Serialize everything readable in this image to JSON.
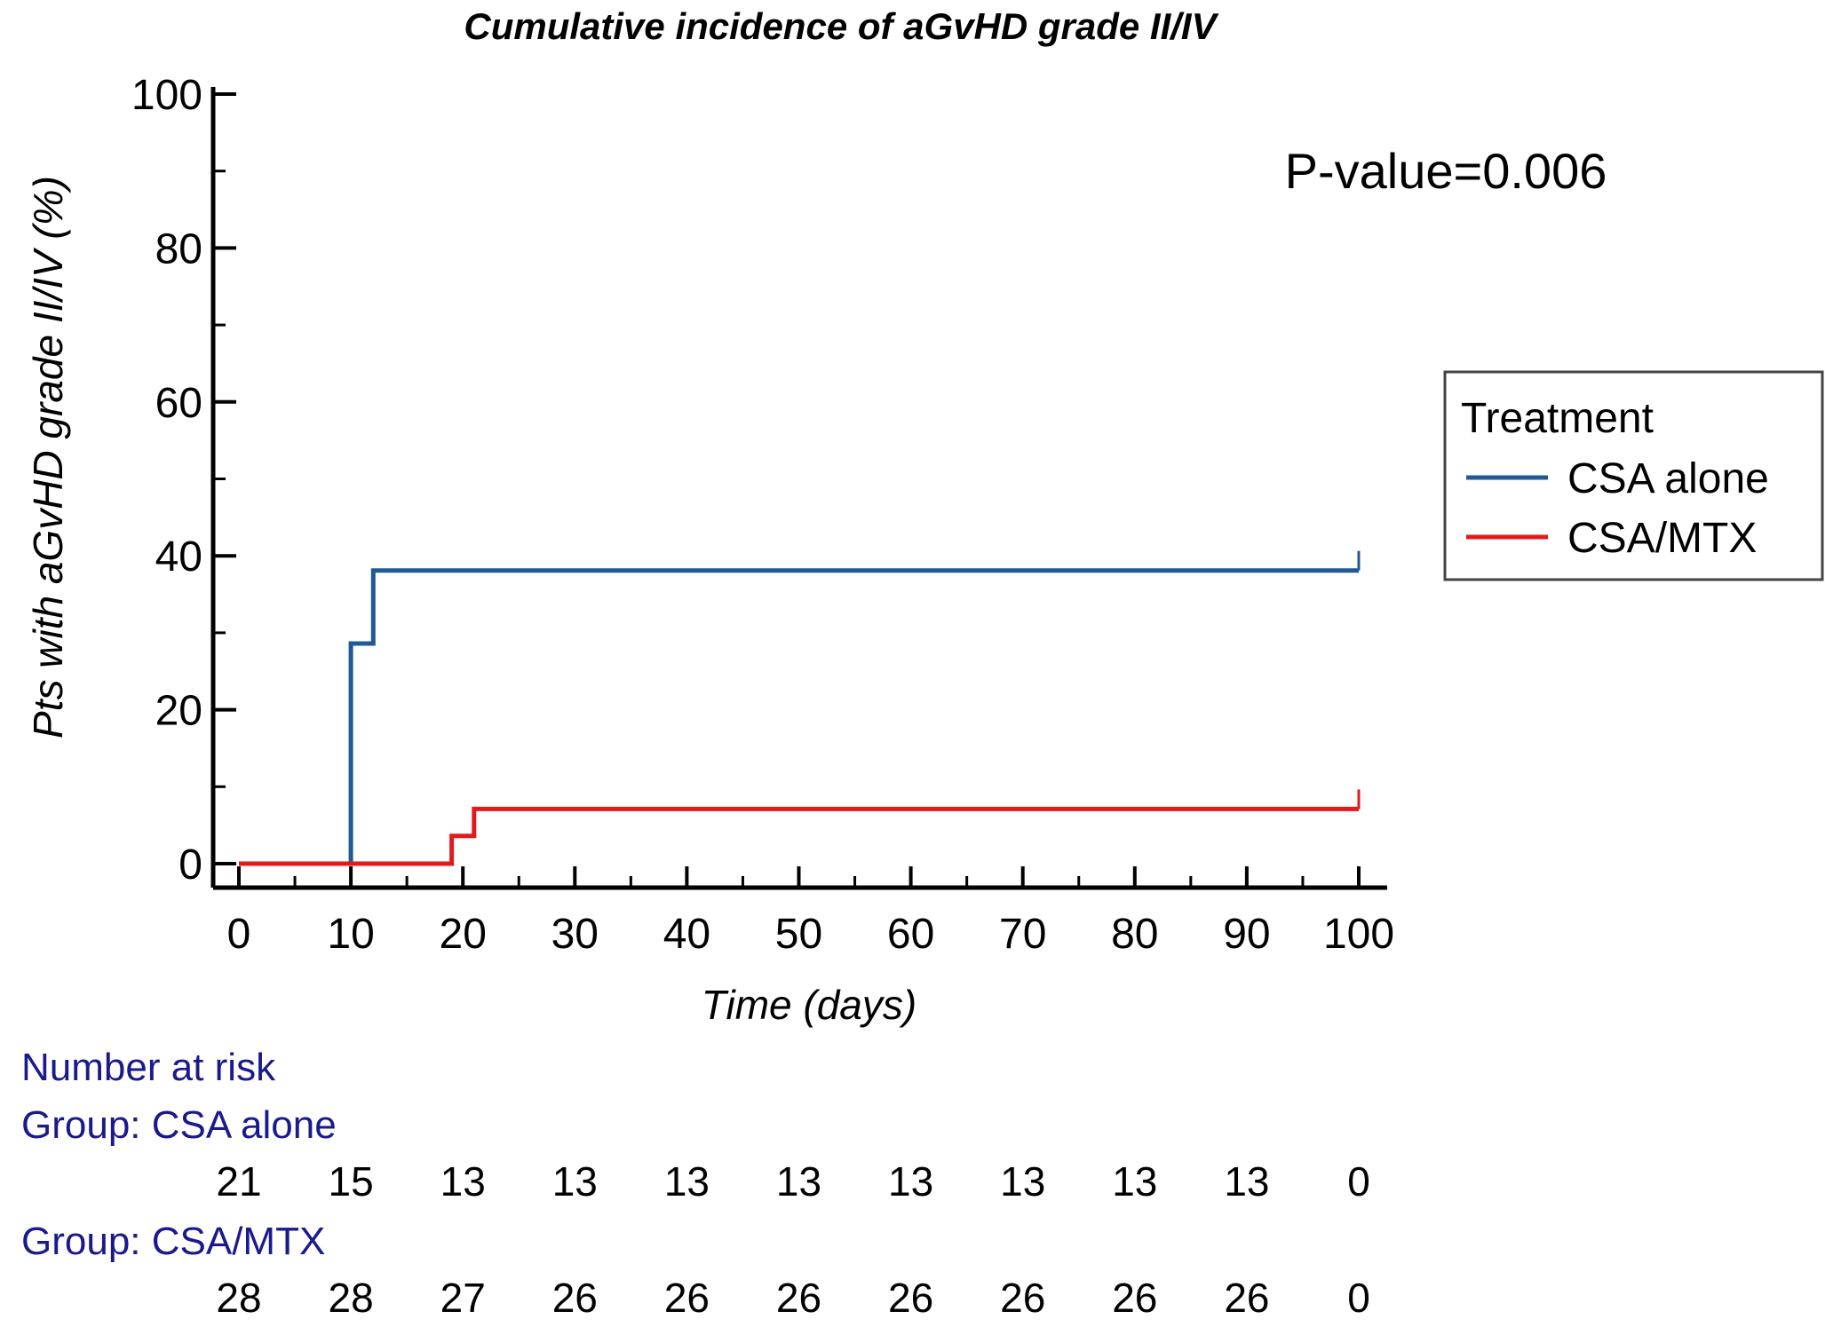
{
  "chart_data": {
    "type": "line",
    "step": true,
    "title": "Cumulative incidence of aGvHD grade II/IV",
    "xlabel": "Time (days)",
    "ylabel": "Pts with aGvHD grade II/IV (%)",
    "xlim": [
      0,
      100
    ],
    "ylim": [
      0,
      100
    ],
    "x_ticks": [
      0,
      10,
      20,
      30,
      40,
      50,
      60,
      70,
      80,
      90,
      100
    ],
    "y_ticks": [
      0,
      20,
      40,
      60,
      80,
      100
    ],
    "annotation": "P-value=0.006",
    "legend": {
      "title": "Treatment",
      "position": "right"
    },
    "series": [
      {
        "name": "CSA alone",
        "color": "#1f5a96",
        "points": [
          [
            0,
            0
          ],
          [
            10,
            0
          ],
          [
            10,
            28.6
          ],
          [
            12,
            28.6
          ],
          [
            12,
            38.1
          ],
          [
            100,
            38.1
          ]
        ],
        "censor_end": 100
      },
      {
        "name": "CSA/MTX",
        "color": "#e31a1c",
        "points": [
          [
            0,
            0
          ],
          [
            19,
            0
          ],
          [
            19,
            3.6
          ],
          [
            21,
            3.6
          ],
          [
            21,
            7.1
          ],
          [
            100,
            7.1
          ]
        ],
        "censor_end": 100
      }
    ],
    "risk_table": {
      "heading": "Number at risk",
      "times": [
        0,
        10,
        20,
        30,
        40,
        50,
        60,
        70,
        80,
        90,
        100
      ],
      "groups": [
        {
          "label": "Group: CSA alone",
          "values": [
            "21",
            "15",
            "13",
            "13",
            "13",
            "13",
            "13",
            "13",
            "13",
            "13",
            "0"
          ]
        },
        {
          "label": "Group: CSA/MTX",
          "values": [
            "28",
            "28",
            "27",
            "26",
            "26",
            "26",
            "26",
            "26",
            "26",
            "26",
            "0"
          ]
        }
      ]
    }
  }
}
